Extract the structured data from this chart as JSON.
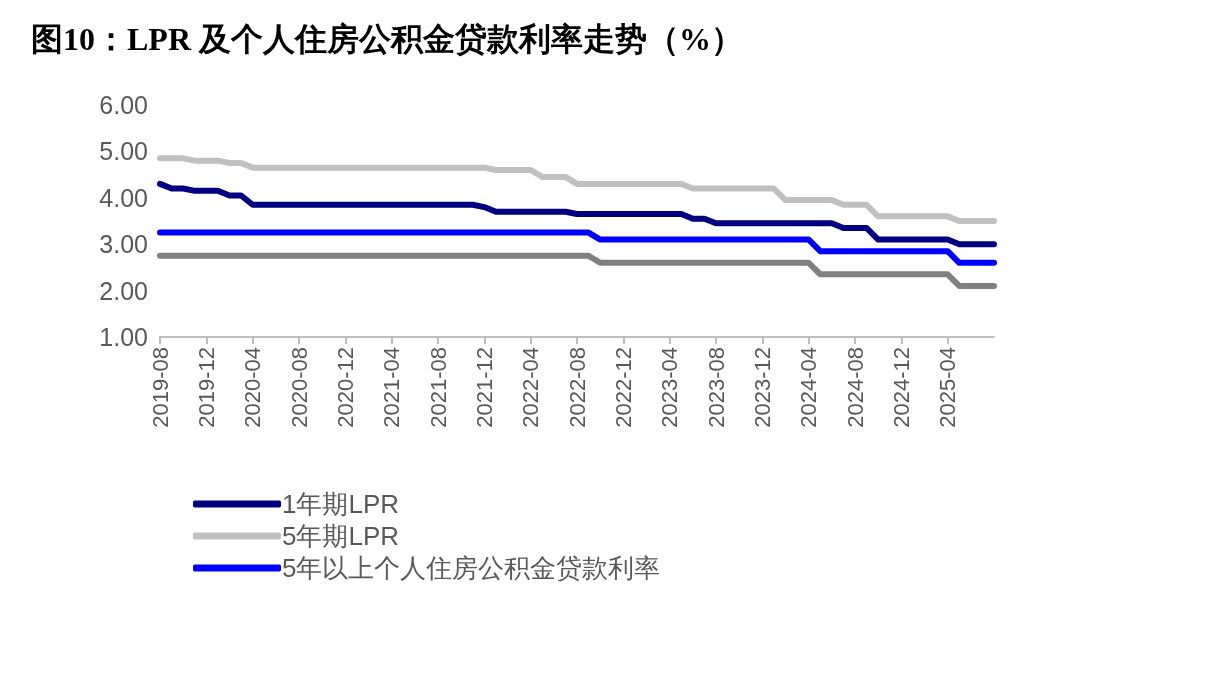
{
  "chart_data": {
    "type": "line",
    "title": "图10：LPR 及个人住房公积金贷款利率走势（%）",
    "categories": [
      "2019-08",
      null,
      null,
      null,
      "2019-12",
      null,
      null,
      null,
      "2020-04",
      null,
      null,
      null,
      "2020-08",
      null,
      null,
      null,
      "2020-12",
      null,
      null,
      null,
      "2021-04",
      null,
      null,
      null,
      "2021-08",
      null,
      null,
      null,
      "2021-12",
      null,
      null,
      null,
      "2022-04",
      null,
      null,
      null,
      "2022-08",
      null,
      null,
      null,
      "2022-12",
      null,
      null,
      null,
      "2023-04",
      null,
      null,
      null,
      "2023-08",
      null,
      null,
      null,
      "2023-12",
      null,
      null,
      null,
      "2024-04",
      null,
      null,
      null,
      "2024-08",
      null,
      null,
      null,
      "2024-12",
      null,
      null,
      null,
      "2025-04",
      null,
      null,
      null,
      null
    ],
    "series": [
      {
        "name": "1年期LPR",
        "color": "#000080",
        "values": [
          4.3,
          4.2,
          4.2,
          4.15,
          4.15,
          4.15,
          4.05,
          4.05,
          3.85,
          3.85,
          3.85,
          3.85,
          3.85,
          3.85,
          3.85,
          3.85,
          3.85,
          3.85,
          3.85,
          3.85,
          3.85,
          3.85,
          3.85,
          3.85,
          3.85,
          3.85,
          3.85,
          3.85,
          3.8,
          3.7,
          3.7,
          3.7,
          3.7,
          3.7,
          3.7,
          3.7,
          3.65,
          3.65,
          3.65,
          3.65,
          3.65,
          3.65,
          3.65,
          3.65,
          3.65,
          3.65,
          3.55,
          3.55,
          3.45,
          3.45,
          3.45,
          3.45,
          3.45,
          3.45,
          3.45,
          3.45,
          3.45,
          3.45,
          3.45,
          3.35,
          3.35,
          3.35,
          3.1,
          3.1,
          3.1,
          3.1,
          3.1,
          3.1,
          3.1,
          3.0,
          3.0,
          3.0,
          3.0
        ]
      },
      {
        "name": "5年期LPR",
        "color": "#c0c0c0",
        "values": [
          4.85,
          4.85,
          4.85,
          4.8,
          4.8,
          4.8,
          4.75,
          4.75,
          4.65,
          4.65,
          4.65,
          4.65,
          4.65,
          4.65,
          4.65,
          4.65,
          4.65,
          4.65,
          4.65,
          4.65,
          4.65,
          4.65,
          4.65,
          4.65,
          4.65,
          4.65,
          4.65,
          4.65,
          4.65,
          4.6,
          4.6,
          4.6,
          4.6,
          4.45,
          4.45,
          4.45,
          4.3,
          4.3,
          4.3,
          4.3,
          4.3,
          4.3,
          4.3,
          4.3,
          4.3,
          4.3,
          4.2,
          4.2,
          4.2,
          4.2,
          4.2,
          4.2,
          4.2,
          4.2,
          3.95,
          3.95,
          3.95,
          3.95,
          3.95,
          3.85,
          3.85,
          3.85,
          3.6,
          3.6,
          3.6,
          3.6,
          3.6,
          3.6,
          3.6,
          3.5,
          3.5,
          3.5,
          3.5
        ]
      },
      {
        "name": "5年以上个人住房公积金贷款利率",
        "color": "#0000ff",
        "values": [
          3.25,
          3.25,
          3.25,
          3.25,
          3.25,
          3.25,
          3.25,
          3.25,
          3.25,
          3.25,
          3.25,
          3.25,
          3.25,
          3.25,
          3.25,
          3.25,
          3.25,
          3.25,
          3.25,
          3.25,
          3.25,
          3.25,
          3.25,
          3.25,
          3.25,
          3.25,
          3.25,
          3.25,
          3.25,
          3.25,
          3.25,
          3.25,
          3.25,
          3.25,
          3.25,
          3.25,
          3.25,
          3.25,
          3.1,
          3.1,
          3.1,
          3.1,
          3.1,
          3.1,
          3.1,
          3.1,
          3.1,
          3.1,
          3.1,
          3.1,
          3.1,
          3.1,
          3.1,
          3.1,
          3.1,
          3.1,
          3.1,
          2.85,
          2.85,
          2.85,
          2.85,
          2.85,
          2.85,
          2.85,
          2.85,
          2.85,
          2.85,
          2.85,
          2.85,
          2.6,
          2.6,
          2.6,
          2.6
        ]
      },
      {
        "color": "#808080",
        "values": [
          2.75,
          2.75,
          2.75,
          2.75,
          2.75,
          2.75,
          2.75,
          2.75,
          2.75,
          2.75,
          2.75,
          2.75,
          2.75,
          2.75,
          2.75,
          2.75,
          2.75,
          2.75,
          2.75,
          2.75,
          2.75,
          2.75,
          2.75,
          2.75,
          2.75,
          2.75,
          2.75,
          2.75,
          2.75,
          2.75,
          2.75,
          2.75,
          2.75,
          2.75,
          2.75,
          2.75,
          2.75,
          2.75,
          2.6,
          2.6,
          2.6,
          2.6,
          2.6,
          2.6,
          2.6,
          2.6,
          2.6,
          2.6,
          2.6,
          2.6,
          2.6,
          2.6,
          2.6,
          2.6,
          2.6,
          2.6,
          2.6,
          2.35,
          2.35,
          2.35,
          2.35,
          2.35,
          2.35,
          2.35,
          2.35,
          2.35,
          2.35,
          2.35,
          2.35,
          2.1,
          2.1,
          2.1,
          2.1
        ]
      }
    ],
    "ylim": [
      1,
      6
    ],
    "yticks": [
      {
        "value": 1,
        "label": "1.00"
      },
      {
        "value": 2,
        "label": "2.00"
      },
      {
        "value": 3,
        "label": "3.00"
      },
      {
        "value": 4,
        "label": "4.00"
      },
      {
        "value": 5,
        "label": "5.00"
      },
      {
        "value": 6,
        "label": "6.00"
      }
    ],
    "grid": false,
    "legend": "bottom",
    "marker": "none",
    "line_style": "solid"
  }
}
